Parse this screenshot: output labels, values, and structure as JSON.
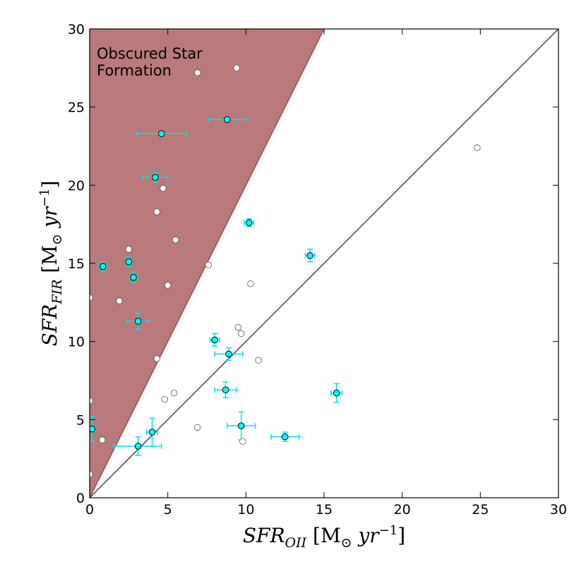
{
  "chart_data": {
    "type": "scatter",
    "title": "",
    "xlabel": {
      "base": "SFR",
      "sub": "OII",
      "unit_open": " [M",
      "unit_sun": "⊙",
      "unit_mid": " yr",
      "unit_sup": "−1",
      "unit_close": "]"
    },
    "ylabel": {
      "base": "SFR",
      "sub": "FIR",
      "unit_open": " [M",
      "unit_sun": "⊙",
      "unit_mid": " yr",
      "unit_sup": "−1",
      "unit_close": "]"
    },
    "xlim": [
      0,
      30
    ],
    "ylim": [
      0,
      30
    ],
    "x_ticks": [
      0,
      5,
      10,
      15,
      20,
      25,
      30
    ],
    "y_ticks": [
      0,
      5,
      10,
      15,
      20,
      25,
      30
    ],
    "grid": false,
    "region": {
      "label_line1": "Obscured Star",
      "label_line2": "Formation",
      "slope": 2,
      "color": "#b87a7a",
      "edge_color": "#a04848"
    },
    "one_to_one_line": {
      "slope": 1,
      "color": "#444444"
    },
    "colors": {
      "with_errors_fill": "#00ffff",
      "errorbar": "#00e5e5",
      "no_errors_fill": "#ffffff"
    },
    "series": [
      {
        "marker": "filled-cyan-with-errorbars",
        "points": [
          {
            "x": 4.6,
            "y": 23.3,
            "xerr": 1.6,
            "yerr": 0.1
          },
          {
            "x": 8.8,
            "y": 24.2,
            "xerr": 1.2,
            "yerr": 0.1
          },
          {
            "x": 4.2,
            "y": 20.5,
            "xerr": 0.8,
            "yerr": 0.3
          },
          {
            "x": 10.2,
            "y": 17.6,
            "xerr": 0.3,
            "yerr": 0.25
          },
          {
            "x": 0.85,
            "y": 14.8,
            "xerr": 0.25,
            "yerr": 0.3
          },
          {
            "x": 2.5,
            "y": 15.1,
            "xerr": 0.2,
            "yerr": 0.3
          },
          {
            "x": 2.8,
            "y": 14.1,
            "xerr": 0.25,
            "yerr": 0.35
          },
          {
            "x": 3.1,
            "y": 11.3,
            "xerr": 0.7,
            "yerr": 0.5
          },
          {
            "x": 14.1,
            "y": 15.5,
            "xerr": 0.3,
            "yerr": 0.4
          },
          {
            "x": 8.0,
            "y": 10.1,
            "xerr": 0.3,
            "yerr": 0.4
          },
          {
            "x": 8.9,
            "y": 9.2,
            "xerr": 0.9,
            "yerr": 0.4
          },
          {
            "x": 8.7,
            "y": 6.9,
            "xerr": 0.7,
            "yerr": 0.5
          },
          {
            "x": 15.8,
            "y": 6.7,
            "xerr": 0.35,
            "yerr": 0.6
          },
          {
            "x": 0.15,
            "y": 4.4,
            "xerr": 0.2,
            "yerr": 0.8
          },
          {
            "x": 4.0,
            "y": 4.2,
            "xerr": 0.35,
            "yerr": 0.9
          },
          {
            "x": 3.1,
            "y": 3.3,
            "xerr": 1.5,
            "yerr": 0.6
          },
          {
            "x": 9.7,
            "y": 4.6,
            "xerr": 0.9,
            "yerr": 0.9
          },
          {
            "x": 12.5,
            "y": 3.9,
            "xerr": 0.9,
            "yerr": 0.3
          }
        ]
      },
      {
        "marker": "open-white",
        "points": [
          {
            "x": 6.9,
            "y": 27.2
          },
          {
            "x": 9.4,
            "y": 27.5
          },
          {
            "x": 4.7,
            "y": 19.8
          },
          {
            "x": 4.3,
            "y": 18.3
          },
          {
            "x": 5.5,
            "y": 16.5
          },
          {
            "x": 2.5,
            "y": 15.9
          },
          {
            "x": 7.6,
            "y": 14.9
          },
          {
            "x": 10.3,
            "y": 13.7
          },
          {
            "x": 5.0,
            "y": 13.6
          },
          {
            "x": 0.0,
            "y": 12.8
          },
          {
            "x": 1.9,
            "y": 12.6
          },
          {
            "x": 9.5,
            "y": 10.9
          },
          {
            "x": 9.7,
            "y": 10.5
          },
          {
            "x": 4.3,
            "y": 8.9
          },
          {
            "x": 10.8,
            "y": 8.8
          },
          {
            "x": 5.4,
            "y": 6.7
          },
          {
            "x": 4.8,
            "y": 6.3
          },
          {
            "x": 0.0,
            "y": 6.2
          },
          {
            "x": 6.9,
            "y": 4.5
          },
          {
            "x": 0.8,
            "y": 3.7
          },
          {
            "x": 9.8,
            "y": 3.6
          },
          {
            "x": 0.0,
            "y": 1.5
          },
          {
            "x": 24.8,
            "y": 22.4
          }
        ]
      }
    ]
  }
}
